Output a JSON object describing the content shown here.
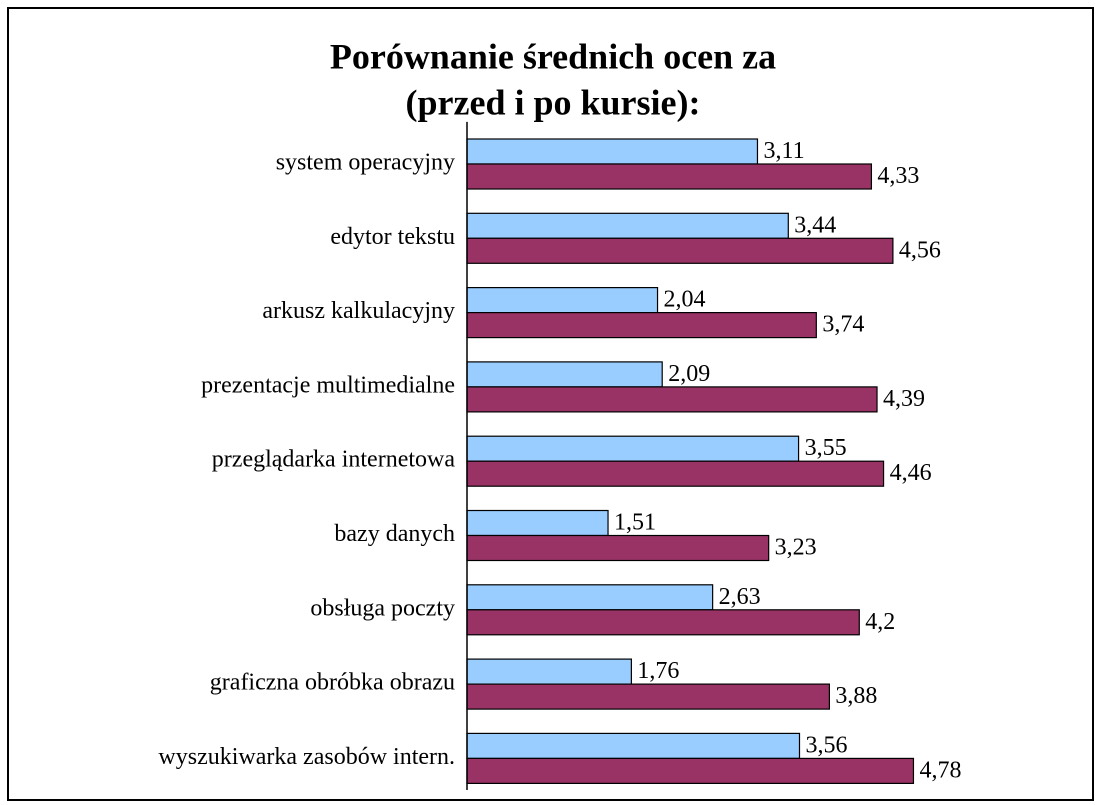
{
  "chart_data": {
    "type": "hbar",
    "title": "Porównanie średnich  ocen za",
    "subtitle": "(przed i po kursie):",
    "categories": [
      "system operacyjny",
      "edytor tekstu",
      "arkusz kalkulacyjny",
      "prezentacje multimedialne",
      "przeglądarka internetowa",
      "bazy danych",
      "obsługa poczty",
      "graficzna obróbka obrazu",
      "wyszukiwarka zasobów intern."
    ],
    "series": [
      {
        "color": "#99ccff",
        "values": [
          3.11,
          3.44,
          2.04,
          2.09,
          3.55,
          1.51,
          2.63,
          1.76,
          3.56
        ],
        "value_labels": [
          "3,11",
          "3,44",
          "2,04",
          "2,09",
          "3,55",
          "1,51",
          "2,63",
          "1,76",
          "3,56"
        ]
      },
      {
        "color": "#993366",
        "values": [
          4.33,
          4.56,
          3.74,
          4.39,
          4.46,
          3.23,
          4.2,
          3.88,
          4.78
        ],
        "value_labels": [
          "4,33",
          "4,56",
          "3,74",
          "4,39",
          "4,46",
          "3,23",
          "4,2",
          "3,88",
          "4,78"
        ]
      }
    ],
    "xlim": [
      0,
      5
    ]
  }
}
